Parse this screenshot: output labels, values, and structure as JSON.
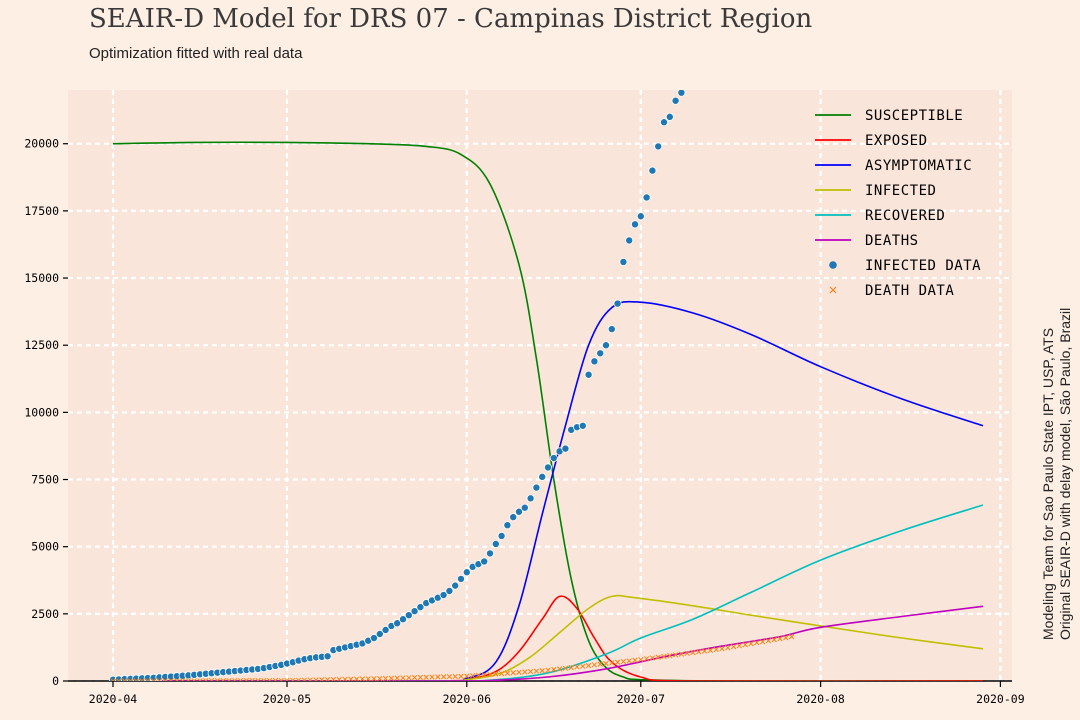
{
  "title": "SEAIR-D Model for DRS 07 - Campinas District Region",
  "subtitle": "Optimization fitted with real data",
  "credit_line1": "Modeling Team for Sao Paulo State IPT, USP, ATS",
  "credit_line2": "Original SEAIR-D with delay model, São Paulo, Brazil",
  "chart_data": {
    "type": "line",
    "x_start": "2020-04-01",
    "xticks": [
      "2020-04",
      "2020-05",
      "2020-06",
      "2020-07",
      "2020-08",
      "2020-09"
    ],
    "yticks": [
      0,
      2500,
      5000,
      7500,
      10000,
      12500,
      15000,
      17500,
      20000
    ],
    "ylim": [
      0,
      22000
    ],
    "grid": true,
    "legend_position": "top-right",
    "colors": {
      "susceptible": "#008000",
      "exposed": "#ff0000",
      "asymptomatic": "#0000ff",
      "infected": "#bfbf00",
      "recovered": "#00bfbf",
      "deaths": "#bf00bf",
      "infected_data": "#1f77b4",
      "death_data": "#ff7f0e"
    },
    "series": [
      {
        "name": "SUSCEPTIBLE",
        "key": "susceptible",
        "kind": "line",
        "x": [
          "2020-04-01",
          "2020-04-15",
          "2020-05-01",
          "2020-05-15",
          "2020-05-25",
          "2020-05-31",
          "2020-06-05",
          "2020-06-10",
          "2020-06-13",
          "2020-06-16",
          "2020-06-19",
          "2020-06-22",
          "2020-06-25",
          "2020-06-28",
          "2020-07-01",
          "2020-07-15",
          "2020-08-01",
          "2020-08-15",
          "2020-08-29"
        ],
        "y": [
          20000,
          20050,
          20050,
          20000,
          19900,
          19600,
          18500,
          15500,
          12000,
          7500,
          3800,
          1500,
          500,
          150,
          50,
          0,
          0,
          0,
          0
        ]
      },
      {
        "name": "EXPOSED",
        "key": "exposed",
        "kind": "line",
        "x": [
          "2020-04-01",
          "2020-05-25",
          "2020-06-01",
          "2020-06-06",
          "2020-06-10",
          "2020-06-14",
          "2020-06-17",
          "2020-06-20",
          "2020-06-23",
          "2020-06-26",
          "2020-07-01",
          "2020-07-10",
          "2020-08-29"
        ],
        "y": [
          0,
          0,
          80,
          350,
          1100,
          2300,
          3150,
          2700,
          1600,
          700,
          150,
          0,
          0
        ]
      },
      {
        "name": "ASYMPTOMATIC",
        "key": "asymptomatic",
        "kind": "line",
        "x": [
          "2020-04-01",
          "2020-05-25",
          "2020-06-01",
          "2020-06-06",
          "2020-06-10",
          "2020-06-14",
          "2020-06-18",
          "2020-06-22",
          "2020-06-26",
          "2020-07-01",
          "2020-07-10",
          "2020-07-20",
          "2020-08-01",
          "2020-08-15",
          "2020-08-29"
        ],
        "y": [
          0,
          0,
          100,
          700,
          2800,
          6200,
          9500,
          12500,
          13900,
          14100,
          13700,
          12900,
          11700,
          10500,
          9500
        ]
      },
      {
        "name": "INFECTED",
        "key": "infected",
        "kind": "line",
        "x": [
          "2020-04-01",
          "2020-05-25",
          "2020-06-01",
          "2020-06-07",
          "2020-06-12",
          "2020-06-17",
          "2020-06-22",
          "2020-06-26",
          "2020-06-30",
          "2020-07-10",
          "2020-07-20",
          "2020-08-01",
          "2020-08-15",
          "2020-08-29"
        ],
        "y": [
          0,
          0,
          50,
          300,
          900,
          1800,
          2700,
          3150,
          3100,
          2800,
          2450,
          2050,
          1600,
          1200
        ]
      },
      {
        "name": "RECOVERED",
        "key": "recovered",
        "kind": "line",
        "x": [
          "2020-04-01",
          "2020-05-25",
          "2020-06-05",
          "2020-06-15",
          "2020-06-25",
          "2020-07-01",
          "2020-07-10",
          "2020-07-20",
          "2020-08-01",
          "2020-08-15",
          "2020-08-29"
        ],
        "y": [
          0,
          0,
          30,
          300,
          1000,
          1600,
          2300,
          3300,
          4500,
          5600,
          6550
        ]
      },
      {
        "name": "DEATHS",
        "key": "deaths",
        "kind": "line",
        "x": [
          "2020-04-01",
          "2020-05-25",
          "2020-06-05",
          "2020-06-15",
          "2020-06-25",
          "2020-07-05",
          "2020-07-15",
          "2020-07-25",
          "2020-08-01",
          "2020-08-15",
          "2020-08-29"
        ],
        "y": [
          0,
          0,
          20,
          150,
          450,
          900,
          1300,
          1650,
          2000,
          2400,
          2780
        ]
      },
      {
        "name": "INFECTED DATA",
        "key": "infected_data",
        "kind": "scatter",
        "x_day_start": 0,
        "y": [
          50,
          60,
          70,
          80,
          90,
          100,
          110,
          120,
          135,
          150,
          165,
          180,
          195,
          210,
          230,
          250,
          270,
          290,
          310,
          330,
          350,
          370,
          390,
          410,
          430,
          450,
          480,
          520,
          560,
          600,
          650,
          700,
          760,
          810,
          850,
          880,
          900,
          920,
          1150,
          1200,
          1250,
          1300,
          1350,
          1400,
          1500,
          1600,
          1750,
          1900,
          2050,
          2150,
          2300,
          2450,
          2600,
          2750,
          2900,
          3000,
          3100,
          3200,
          3350,
          3550,
          3800,
          4050,
          4250,
          4350,
          4450,
          4750,
          5100,
          5400,
          5800,
          6100,
          6300,
          6450,
          6800,
          7200,
          7600,
          7950,
          8300,
          8550,
          8650,
          9350,
          9450,
          9500,
          11400,
          11900,
          12200,
          12500,
          13100,
          14050,
          15600,
          16400,
          17000,
          17300,
          18000,
          19000,
          19900,
          20800,
          21000,
          21600,
          21900
        ]
      },
      {
        "name": "DEATH DATA",
        "key": "death_data",
        "kind": "scatter",
        "x": [
          "2020-04-01",
          "2020-05-01",
          "2020-05-15",
          "2020-06-01",
          "2020-06-15",
          "2020-07-01",
          "2020-07-15",
          "2020-07-27"
        ],
        "y": [
          0,
          20,
          80,
          180,
          400,
          800,
          1200,
          1650
        ],
        "daily": true
      }
    ]
  }
}
